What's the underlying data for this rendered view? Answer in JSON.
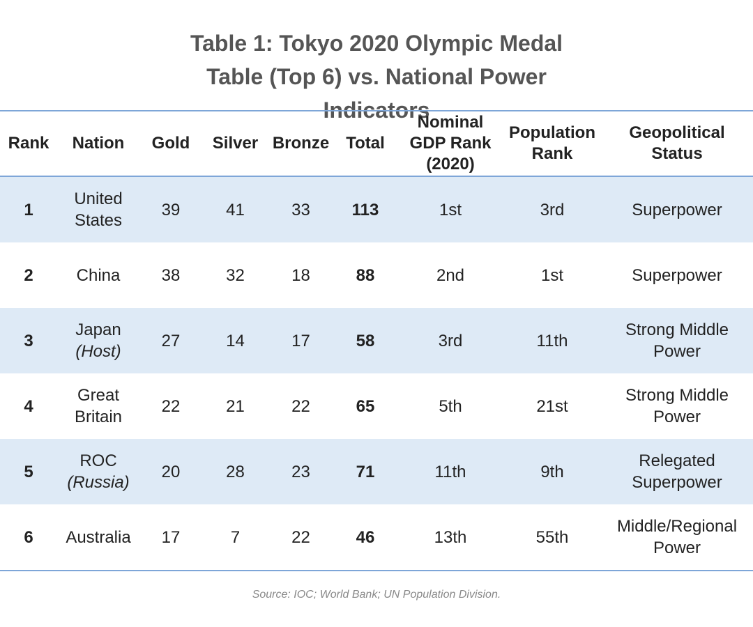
{
  "header": {
    "title": "Table 1: Tokyo 2020 Olympic Medal Table (Top 6) vs. National Power Indicators"
  },
  "table": {
    "headers": [
      "Rank",
      "Nation",
      "Gold",
      "Silver",
      "Bronze",
      "Total",
      "Nominal GDP Rank (2020)",
      "Population Rank",
      "Geopolitical Status"
    ],
    "rows": [
      {
        "rank": 1,
        "nation": "United States",
        "gold": 39,
        "silver": 41,
        "bronze": 33,
        "total": 113,
        "gdp_rank": "1st",
        "population_rank": "3rd",
        "status": "Superpower"
      },
      {
        "rank": 2,
        "nation": "China",
        "gold": 38,
        "silver": 32,
        "bronze": 18,
        "total": 88,
        "gdp_rank": "2nd",
        "population_rank": "1st",
        "status": "Superpower"
      },
      {
        "rank": 3,
        "nation": "Japan",
        "note": "(Host)",
        "gold": 27,
        "silver": 14,
        "bronze": 17,
        "total": 58,
        "gdp_rank": "3rd",
        "population_rank": "11th",
        "status": "Strong Middle Power"
      },
      {
        "rank": 4,
        "nation": "Great Britain",
        "gold": 22,
        "silver": 21,
        "bronze": 22,
        "total": 65,
        "gdp_rank": "5th",
        "population_rank": "21st",
        "status": "Strong Middle Power"
      },
      {
        "rank": 5,
        "nation": "ROC",
        "note": "(Russia)",
        "gold": 20,
        "silver": 28,
        "bronze": 23,
        "total": 71,
        "gdp_rank": "11th",
        "population_rank": "9th",
        "status": "Relegated Superpower"
      },
      {
        "rank": 6,
        "nation": "Australia",
        "gold": 17,
        "silver": 7,
        "bronze": 22,
        "total": 46,
        "gdp_rank": "13th",
        "population_rank": "55th",
        "status": "Middle/Regional Power"
      }
    ]
  },
  "footer": {
    "source": "Source: IOC; World Bank; UN Population Division."
  }
}
